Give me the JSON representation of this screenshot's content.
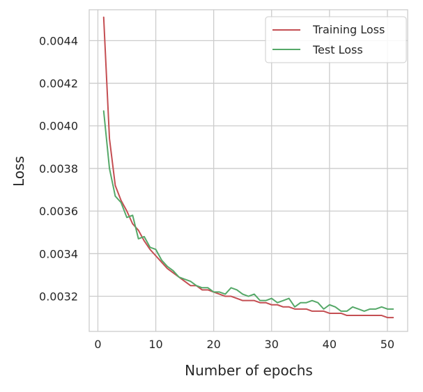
{
  "chart_data": {
    "type": "line",
    "title": "",
    "xlabel": "Number of epochs",
    "ylabel": "Loss",
    "xlim": [
      -1.5,
      53.5
    ],
    "ylim": [
      0.003035,
      0.004545
    ],
    "xticks": [
      0,
      10,
      20,
      30,
      40,
      50
    ],
    "xtick_labels": [
      "0",
      "10",
      "20",
      "30",
      "40",
      "50"
    ],
    "yticks": [
      0.0032,
      0.0034,
      0.0036,
      0.0038,
      0.004,
      0.0042,
      0.0044
    ],
    "ytick_labels": [
      "0.0032",
      "0.0034",
      "0.0036",
      "0.0038",
      "0.0040",
      "0.0042",
      "0.0044"
    ],
    "grid": true,
    "legend_position": "upper right",
    "x": [
      1,
      2,
      3,
      4,
      5,
      6,
      7,
      8,
      9,
      10,
      11,
      12,
      13,
      14,
      15,
      16,
      17,
      18,
      19,
      20,
      21,
      22,
      23,
      24,
      25,
      26,
      27,
      28,
      29,
      30,
      31,
      32,
      33,
      34,
      35,
      36,
      37,
      38,
      39,
      40,
      41,
      42,
      43,
      44,
      45,
      46,
      47,
      48,
      49,
      50,
      51
    ],
    "series": [
      {
        "name": "Training Loss",
        "color": "#c44e52",
        "values": [
          0.00451,
          0.00394,
          0.00372,
          0.00365,
          0.0036,
          0.00354,
          0.00351,
          0.00346,
          0.00342,
          0.00339,
          0.00336,
          0.00333,
          0.00331,
          0.00329,
          0.00327,
          0.00325,
          0.00325,
          0.00323,
          0.00323,
          0.00322,
          0.00321,
          0.0032,
          0.0032,
          0.00319,
          0.00318,
          0.00318,
          0.00318,
          0.00317,
          0.00317,
          0.00316,
          0.00316,
          0.00315,
          0.00315,
          0.00314,
          0.00314,
          0.00314,
          0.00313,
          0.00313,
          0.00313,
          0.00312,
          0.00312,
          0.00312,
          0.00311,
          0.00311,
          0.00311,
          0.00311,
          0.00311,
          0.00311,
          0.00311,
          0.0031,
          0.0031
        ]
      },
      {
        "name": "Test Loss",
        "color": "#55a868",
        "values": [
          0.00407,
          0.0038,
          0.00367,
          0.00364,
          0.00357,
          0.00358,
          0.00347,
          0.00348,
          0.00343,
          0.00342,
          0.00337,
          0.00334,
          0.00332,
          0.00329,
          0.00328,
          0.00327,
          0.00325,
          0.00324,
          0.00324,
          0.00322,
          0.00322,
          0.00321,
          0.00324,
          0.00323,
          0.00321,
          0.0032,
          0.00321,
          0.00318,
          0.00318,
          0.00319,
          0.00317,
          0.00318,
          0.00319,
          0.00315,
          0.00317,
          0.00317,
          0.00318,
          0.00317,
          0.00314,
          0.00316,
          0.00315,
          0.00313,
          0.00313,
          0.00315,
          0.00314,
          0.00313,
          0.00314,
          0.00314,
          0.00315,
          0.00314,
          0.00314
        ]
      }
    ]
  }
}
